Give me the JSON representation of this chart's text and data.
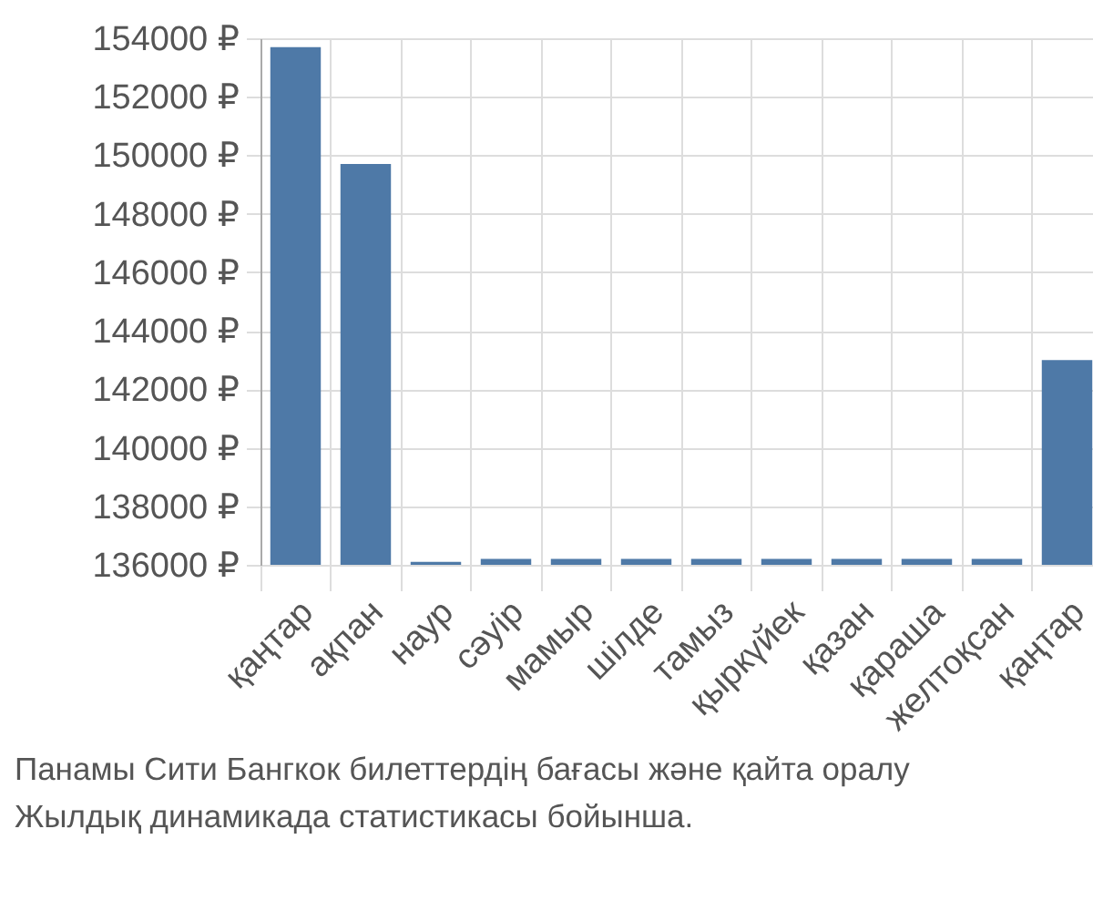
{
  "chart_data": {
    "type": "bar",
    "categories": [
      "қаңтар",
      "ақпан",
      "наур",
      "сәуір",
      "мамыр",
      "шілде",
      "тамыз",
      "қыркүйек",
      "қазан",
      "қараша",
      "желтоқсан",
      "қаңтар"
    ],
    "values": [
      153700,
      149700,
      136100,
      136200,
      136200,
      136200,
      136200,
      136200,
      136200,
      136200,
      136200,
      143000
    ],
    "color": "#4e79a7",
    "ylim": [
      136000,
      154000
    ],
    "yticks": [
      {
        "value": 136000,
        "label": "136000 ₽"
      },
      {
        "value": 138000,
        "label": "138000 ₽"
      },
      {
        "value": 140000,
        "label": "140000 ₽"
      },
      {
        "value": 142000,
        "label": "142000 ₽"
      },
      {
        "value": 144000,
        "label": "144000 ₽"
      },
      {
        "value": 146000,
        "label": "146000 ₽"
      },
      {
        "value": 148000,
        "label": "148000 ₽"
      },
      {
        "value": 150000,
        "label": "150000 ₽"
      },
      {
        "value": 152000,
        "label": "152000 ₽"
      },
      {
        "value": 154000,
        "label": "154000 ₽"
      }
    ],
    "grid": true,
    "annotations": [
      "Панамы Сити Бангкок билеттердің бағасы және қайта оралу",
      "Жылдық динамикада статистикасы бойынша."
    ]
  }
}
